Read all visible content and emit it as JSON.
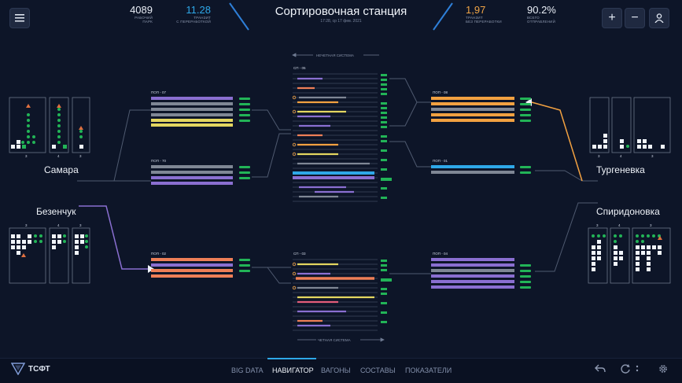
{
  "header": {
    "title": "Сортировочная станция",
    "date": "17:28, ср 17 фев. 2021",
    "stats_left": [
      {
        "value": "4089",
        "caption1": "РАБОЧИЙ",
        "caption2": "ПАРК",
        "color": "#e8edf5"
      },
      {
        "value": "11.28",
        "caption1": "ТРАНЗИТ",
        "caption2": "С ПЕРЕРАБОТКОЙ",
        "color": "#2ea8e8"
      }
    ],
    "stats_right": [
      {
        "value": "1,97",
        "caption1": "ТРАНЗИТ",
        "caption2": "БЕЗ ПЕРЕРАБОТКИ",
        "color": "#f0a446"
      },
      {
        "value": "90.2%",
        "caption1": "ВСЕГО",
        "caption2": "ОТПРАВЛЕНИЙ",
        "color": "#e8edf5"
      }
    ],
    "buttons": {
      "menu": "≡",
      "zoom_in": "+",
      "zoom_out": "−",
      "user": "user-icon"
    }
  },
  "stations": {
    "samara": "Самара",
    "bezenchuk": "Безенчук",
    "turgenevka": "Тургеневка",
    "spiridonovka": "Спиридоновка"
  },
  "tracks": {
    "pop07": "ПОП - 07",
    "pop70": "ПОП - 70",
    "pop02": "ПОП - 02",
    "pop08": "ПОП - 08",
    "pop01": "ПОП - 01",
    "pop04": "ПОП - 04",
    "sp05": "СП - 05",
    "sp03": "СП - 03"
  },
  "systems": {
    "odd": "НЕЧЕТНАЯ СИСТЕМА",
    "even": "ЧЕТНАЯ СИСТЕМА"
  },
  "counts": {
    "samara": [
      "3",
      "4",
      "3"
    ],
    "bezenchuk": [
      "3",
      "4",
      "3"
    ],
    "turgenevka": [
      "3",
      "4",
      "3"
    ],
    "spiridonovka": [
      "3",
      "4",
      "3"
    ]
  },
  "colors": {
    "green": "#22b457",
    "orange": "#f2a141",
    "purple": "#8a6fd1",
    "gray": "#7f8795",
    "yellow": "#e3d660",
    "salmon": "#ee7f57",
    "blue": "#2ea8e8",
    "pink": "#e35d7a",
    "red": "#e04848"
  },
  "nav": {
    "logo": "ТСФТ",
    "tabs": [
      "BIG DATA",
      "НАВИГАТОР",
      "ВАГОНЫ",
      "СОСТАВЫ",
      "ПОКАЗАТЕЛИ"
    ],
    "active_tab": "НАВИГАТОР",
    "icons": [
      "back-arrow-icon",
      "refresh-icon",
      "more-vertical-icon",
      "settings-icon"
    ]
  }
}
